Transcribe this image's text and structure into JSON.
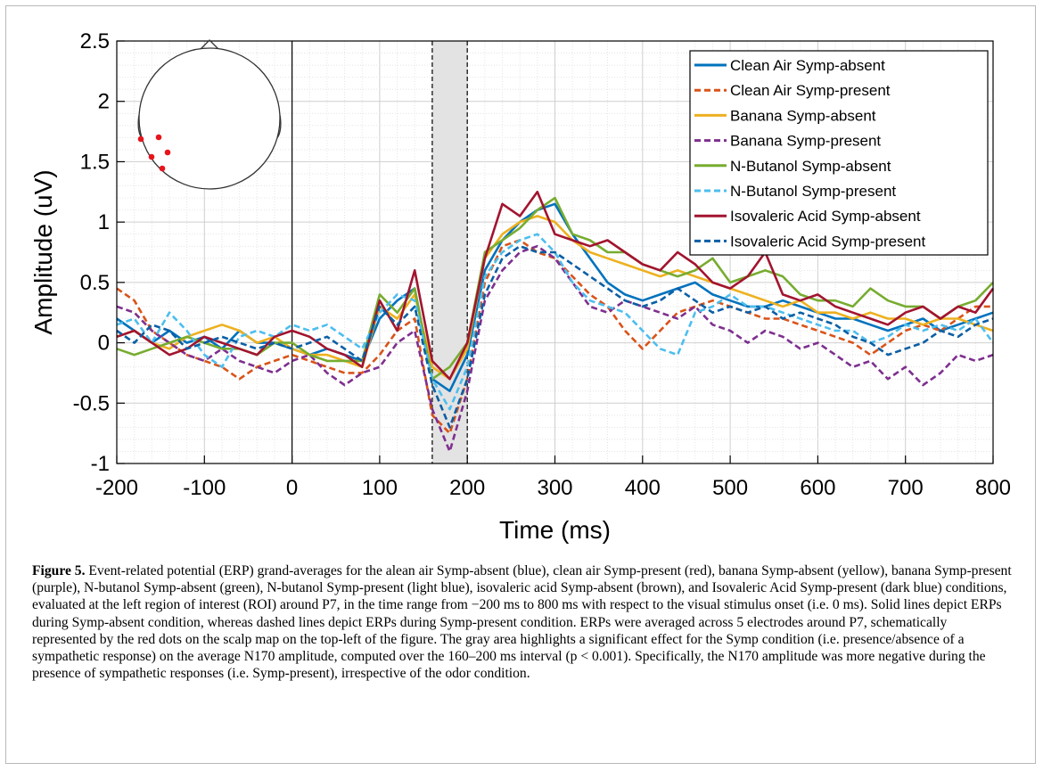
{
  "chart_data": {
    "type": "line",
    "xlabel": "Time (ms)",
    "ylabel": "Amplitude (uV)",
    "xlim": [
      -200,
      800
    ],
    "ylim": [
      -1,
      2.5
    ],
    "xticks": [
      -200,
      -100,
      0,
      100,
      200,
      300,
      400,
      500,
      600,
      700,
      800
    ],
    "yticks": [
      -1,
      -0.5,
      0,
      0.5,
      1,
      1.5,
      2,
      2.5
    ],
    "xtick_labels": [
      "-200",
      "-100",
      "0",
      "100",
      "200",
      "300",
      "400",
      "500",
      "600",
      "700",
      "800"
    ],
    "ytick_labels": [
      "-1",
      "-0.5",
      "0",
      "0.5",
      "1",
      "1.5",
      "2",
      "2.5"
    ],
    "grid": "major and minor",
    "legend_position": "top-right",
    "highlight_interval": [
      160,
      200
    ],
    "stimulus_onset": 0,
    "x": [
      -200,
      -180,
      -160,
      -140,
      -120,
      -100,
      -80,
      -60,
      -40,
      -20,
      0,
      20,
      40,
      60,
      80,
      100,
      120,
      140,
      160,
      180,
      200,
      220,
      240,
      260,
      280,
      300,
      320,
      340,
      360,
      380,
      400,
      420,
      440,
      460,
      480,
      500,
      520,
      540,
      560,
      580,
      600,
      620,
      640,
      660,
      680,
      700,
      720,
      740,
      760,
      780,
      800
    ],
    "series": [
      {
        "name": "Clean Air Symp-absent",
        "color": "#0072BD",
        "dashed": false,
        "values": [
          0.2,
          0.1,
          0.0,
          0.1,
          0.0,
          0.05,
          -0.05,
          0.1,
          0.0,
          0.0,
          -0.05,
          -0.1,
          -0.05,
          -0.1,
          -0.15,
          0.2,
          0.35,
          0.45,
          -0.3,
          -0.4,
          -0.1,
          0.6,
          0.85,
          1.0,
          1.1,
          1.15,
          0.9,
          0.7,
          0.5,
          0.4,
          0.35,
          0.4,
          0.45,
          0.5,
          0.4,
          0.35,
          0.3,
          0.3,
          0.35,
          0.3,
          0.25,
          0.2,
          0.2,
          0.15,
          0.1,
          0.15,
          0.2,
          0.1,
          0.15,
          0.2,
          0.25
        ]
      },
      {
        "name": "Clean Air Symp-present",
        "color": "#D95319",
        "dashed": true,
        "values": [
          0.45,
          0.35,
          0.1,
          0.0,
          -0.1,
          -0.15,
          -0.2,
          -0.3,
          -0.2,
          -0.15,
          -0.1,
          -0.15,
          -0.2,
          -0.25,
          -0.25,
          -0.1,
          0.1,
          0.2,
          -0.6,
          -0.75,
          -0.3,
          0.5,
          0.8,
          0.85,
          0.75,
          0.7,
          0.55,
          0.4,
          0.3,
          0.1,
          -0.05,
          0.1,
          0.25,
          0.3,
          0.35,
          0.3,
          0.25,
          0.2,
          0.2,
          0.15,
          0.1,
          0.05,
          0.0,
          -0.1,
          0.0,
          0.1,
          0.15,
          0.1,
          0.2,
          0.3,
          0.3
        ]
      },
      {
        "name": "Banana Symp-absent",
        "color": "#EDB120",
        "dashed": false,
        "values": [
          0.05,
          0.1,
          0.0,
          -0.05,
          0.05,
          0.1,
          0.15,
          0.1,
          0.0,
          0.05,
          -0.05,
          -0.1,
          -0.1,
          -0.15,
          -0.2,
          0.3,
          0.2,
          0.4,
          -0.2,
          -0.3,
          -0.05,
          0.7,
          0.9,
          1.0,
          1.05,
          1.0,
          0.85,
          0.75,
          0.7,
          0.65,
          0.6,
          0.55,
          0.6,
          0.55,
          0.5,
          0.45,
          0.4,
          0.35,
          0.3,
          0.35,
          0.25,
          0.25,
          0.2,
          0.25,
          0.2,
          0.2,
          0.15,
          0.2,
          0.2,
          0.15,
          0.1
        ]
      },
      {
        "name": "Banana Symp-present",
        "color": "#7E2F8E",
        "dashed": true,
        "values": [
          0.3,
          0.25,
          0.1,
          0.0,
          -0.1,
          -0.15,
          -0.05,
          -0.15,
          -0.2,
          -0.25,
          -0.15,
          -0.1,
          -0.25,
          -0.35,
          -0.25,
          -0.2,
          0.0,
          0.1,
          -0.55,
          -0.9,
          -0.4,
          0.35,
          0.6,
          0.75,
          0.8,
          0.7,
          0.5,
          0.3,
          0.25,
          0.35,
          0.3,
          0.25,
          0.2,
          0.3,
          0.15,
          0.1,
          0.0,
          0.1,
          0.05,
          -0.05,
          0.0,
          -0.1,
          -0.2,
          -0.15,
          -0.3,
          -0.2,
          -0.35,
          -0.25,
          -0.1,
          -0.15,
          -0.1
        ]
      },
      {
        "name": "N-Butanol Symp-absent",
        "color": "#77AC30",
        "dashed": false,
        "values": [
          -0.05,
          -0.1,
          -0.05,
          0.0,
          0.05,
          0.0,
          -0.05,
          -0.05,
          -0.1,
          0.0,
          0.0,
          -0.1,
          -0.15,
          -0.15,
          -0.15,
          0.4,
          0.25,
          0.45,
          -0.3,
          -0.2,
          0.0,
          0.75,
          0.85,
          0.95,
          1.1,
          1.2,
          0.9,
          0.85,
          0.75,
          0.75,
          0.65,
          0.6,
          0.55,
          0.6,
          0.7,
          0.5,
          0.55,
          0.6,
          0.55,
          0.4,
          0.35,
          0.35,
          0.3,
          0.45,
          0.35,
          0.3,
          0.3,
          0.2,
          0.3,
          0.35,
          0.5
        ]
      },
      {
        "name": "N-Butanol Symp-present",
        "color": "#4DBEEE",
        "dashed": true,
        "values": [
          0.15,
          0.2,
          0.0,
          0.25,
          0.1,
          -0.1,
          -0.2,
          0.05,
          0.1,
          0.05,
          0.15,
          0.1,
          0.15,
          0.05,
          -0.05,
          0.25,
          0.4,
          0.35,
          -0.3,
          -0.55,
          -0.2,
          0.55,
          0.75,
          0.85,
          0.9,
          0.75,
          0.5,
          0.35,
          0.3,
          0.25,
          0.1,
          -0.05,
          -0.1,
          0.25,
          0.3,
          0.4,
          0.3,
          0.3,
          0.25,
          0.2,
          0.15,
          0.1,
          0.1,
          0.0,
          0.05,
          0.15,
          0.1,
          0.15,
          0.1,
          0.2,
          0.0
        ]
      },
      {
        "name": "Isovaleric Acid Symp-absent",
        "color": "#A2142F",
        "dashed": false,
        "values": [
          0.05,
          0.1,
          0.0,
          -0.1,
          -0.05,
          0.05,
          0.0,
          -0.05,
          -0.1,
          0.05,
          0.1,
          0.05,
          -0.05,
          -0.1,
          -0.2,
          0.35,
          0.1,
          0.6,
          -0.15,
          -0.3,
          0.0,
          0.7,
          1.15,
          1.05,
          1.25,
          0.9,
          0.85,
          0.8,
          0.85,
          0.75,
          0.65,
          0.6,
          0.75,
          0.65,
          0.5,
          0.45,
          0.55,
          0.75,
          0.4,
          0.35,
          0.4,
          0.3,
          0.25,
          0.2,
          0.15,
          0.25,
          0.3,
          0.2,
          0.3,
          0.25,
          0.45
        ]
      },
      {
        "name": "Isovaleric Acid Symp-present",
        "color": "#0B5FA5",
        "dashed": true,
        "values": [
          0.1,
          0.0,
          0.15,
          0.1,
          -0.05,
          0.0,
          0.05,
          0.0,
          -0.05,
          0.0,
          -0.05,
          0.0,
          0.05,
          -0.05,
          -0.15,
          0.3,
          0.15,
          0.3,
          -0.35,
          -0.7,
          -0.3,
          0.4,
          0.7,
          0.8,
          0.75,
          0.75,
          0.65,
          0.55,
          0.45,
          0.35,
          0.3,
          0.35,
          0.45,
          0.35,
          0.25,
          0.3,
          0.25,
          0.3,
          0.2,
          0.25,
          0.2,
          0.15,
          0.05,
          0.0,
          -0.1,
          -0.05,
          0.0,
          0.1,
          0.05,
          0.15,
          0.2
        ]
      }
    ],
    "electrodes": "5 electrodes around P7 (red dots on scalp map)"
  },
  "figure": {
    "caption_label": "Figure 5.",
    "caption_text": " Event-related potential (ERP) grand-averages for the alean air Symp-absent (blue), clean air Symp-present (red), banana Symp-absent (yellow), banana Symp-present (purple), N-butanol Symp-absent (green), N-butanol Symp-present (light blue), isovaleric acid Symp-absent (brown), and Isovaleric Acid Symp-present (dark blue) conditions, evaluated at the left region of interest (ROI) around P7, in the time range from −200 ms to 800 ms with respect to the visual stimulus onset (i.e. 0 ms). Solid lines depict ERPs during Symp-absent condition, whereas dashed lines depict ERPs during Symp-present condition. ERPs were averaged across 5 electrodes around P7, schematically represented by the red dots on the scalp map on the top-left of the figure. The gray area highlights a significant effect for the Symp condition (i.e. presence/absence of a sympathetic response) on the average N170 amplitude, computed over the 160–200 ms interval (p < 0.001). Specifically, the N170 amplitude was more negative during the presence of sympathetic responses (i.e. Symp-present), irrespective of the odor condition."
  },
  "colors": {
    "highlight": "#e3e3e3",
    "electrode": "#e8141b"
  }
}
